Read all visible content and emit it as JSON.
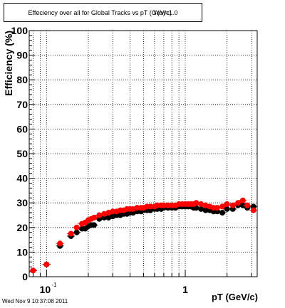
{
  "title": "Effeciency over all for Global Tracks vs pT (GeV/c)",
  "title_overlay": "Y(o)=1.0",
  "timestamp": "Wed Nov  9 10:37:08 2011",
  "colors": {
    "black_series": "#000000",
    "red_series": "#ff0000",
    "grid": "#000000"
  },
  "chart_data": {
    "type": "scatter",
    "xlabel": "pT (GeV/c)",
    "ylabel": "Efficiency (%)",
    "x_scale": "log",
    "xlim": [
      0.075,
      3.3
    ],
    "ylim": [
      0,
      100
    ],
    "x_tick_labels": [
      {
        "value": 0.1,
        "base": "10",
        "exp": "-1"
      },
      {
        "value": 1,
        "base": "1",
        "exp": ""
      }
    ],
    "y_ticks": [
      0,
      10,
      20,
      30,
      40,
      50,
      60,
      70,
      80,
      90,
      100
    ],
    "grid": true,
    "legend": "none",
    "series": [
      {
        "color": "#000000",
        "x": [
          0.08,
          0.1,
          0.125,
          0.15,
          0.165,
          0.18,
          0.19,
          0.2,
          0.21,
          0.22,
          0.24,
          0.26,
          0.28,
          0.3,
          0.32,
          0.34,
          0.36,
          0.38,
          0.4,
          0.42,
          0.45,
          0.48,
          0.5,
          0.53,
          0.56,
          0.6,
          0.63,
          0.67,
          0.7,
          0.75,
          0.8,
          0.85,
          0.9,
          0.95,
          1.0,
          1.05,
          1.1,
          1.15,
          1.2,
          1.3,
          1.4,
          1.5,
          1.6,
          1.7,
          1.85,
          2.0,
          2.2,
          2.4,
          2.6,
          2.8,
          3.1
        ],
        "y": [
          2.5,
          5.0,
          12.5,
          16.5,
          18.0,
          19.5,
          19.5,
          20.5,
          21.0,
          21.0,
          23.5,
          24.0,
          24.0,
          24.5,
          25.0,
          25.0,
          25.5,
          25.5,
          26.0,
          26.0,
          26.5,
          26.5,
          27.0,
          27.0,
          27.0,
          27.5,
          27.5,
          27.5,
          28.0,
          28.0,
          28.0,
          28.0,
          28.5,
          28.5,
          28.5,
          28.5,
          28.5,
          28.0,
          28.0,
          27.5,
          27.0,
          27.0,
          26.5,
          26.5,
          26.0,
          27.5,
          27.5,
          29.0,
          29.0,
          28.0,
          28.5
        ]
      },
      {
        "color": "#ff0000",
        "x": [
          0.08,
          0.1,
          0.125,
          0.15,
          0.165,
          0.18,
          0.19,
          0.2,
          0.21,
          0.22,
          0.24,
          0.26,
          0.28,
          0.3,
          0.32,
          0.34,
          0.36,
          0.38,
          0.4,
          0.42,
          0.45,
          0.48,
          0.5,
          0.53,
          0.56,
          0.6,
          0.63,
          0.67,
          0.7,
          0.75,
          0.8,
          0.85,
          0.9,
          0.95,
          1.0,
          1.05,
          1.1,
          1.15,
          1.2,
          1.3,
          1.4,
          1.5,
          1.6,
          1.7,
          1.85,
          2.0,
          2.2,
          2.4,
          2.6,
          2.8,
          3.1
        ],
        "y": [
          2.5,
          5.0,
          13.5,
          17.5,
          20.0,
          21.5,
          22.0,
          23.0,
          23.5,
          24.0,
          25.0,
          25.5,
          26.0,
          26.5,
          26.5,
          27.0,
          27.0,
          27.5,
          27.5,
          27.5,
          28.0,
          28.0,
          28.0,
          28.5,
          28.5,
          28.5,
          29.0,
          29.0,
          29.0,
          29.0,
          29.0,
          29.0,
          29.5,
          29.5,
          29.5,
          29.5,
          29.5,
          29.5,
          30.0,
          29.5,
          29.0,
          28.5,
          28.0,
          28.0,
          28.5,
          29.5,
          29.0,
          30.0,
          31.0,
          29.0,
          27.0
        ]
      }
    ]
  }
}
